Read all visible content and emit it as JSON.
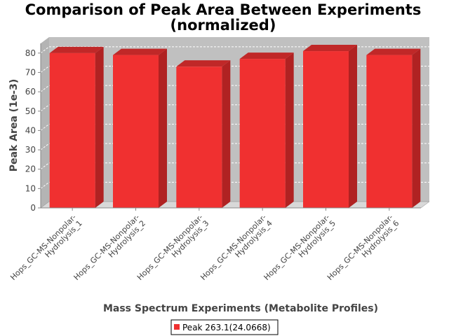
{
  "chart_data": {
    "type": "bar",
    "title_line1": "Comparison of Peak Area Between Experiments",
    "title_line2": "(normalized)",
    "xlabel": "Mass Spectrum Experiments (Metabolite Profiles)",
    "ylabel": "Peak Area (1e-3)",
    "ylim": [
      0,
      85
    ],
    "yticks": [
      0,
      10,
      20,
      30,
      40,
      50,
      60,
      70,
      80
    ],
    "categories": [
      [
        "Hops_GC-MS-Nonpolar-",
        "Hydrolysis_1"
      ],
      [
        "Hops_GC-MS-Nonpolar-",
        "Hydrolysis_2"
      ],
      [
        "Hops_GC-MS-Nonpolar-",
        "Hydrolysis_3"
      ],
      [
        "Hops_GC-MS-Nonpolar-",
        "Hydrolysis_4"
      ],
      [
        "Hops_GC-MS-Nonpolar-",
        "Hydrolysis_5"
      ],
      [
        "Hops_GC-MS-Nonpolar-",
        "Hydrolysis_6"
      ]
    ],
    "series": [
      {
        "name": "Peak 263.1(24.0668)",
        "values": [
          80,
          79,
          73,
          77,
          81,
          79
        ]
      }
    ],
    "colors": {
      "bar_front": "#f03030",
      "bar_top": "#c02828",
      "bar_side": "#b02222",
      "plot_bg": "#c0c0c0",
      "plot_wall": "#b4b4b4",
      "gridline": "#ffffff"
    },
    "grid": true,
    "legend_position": "bottom-center"
  }
}
